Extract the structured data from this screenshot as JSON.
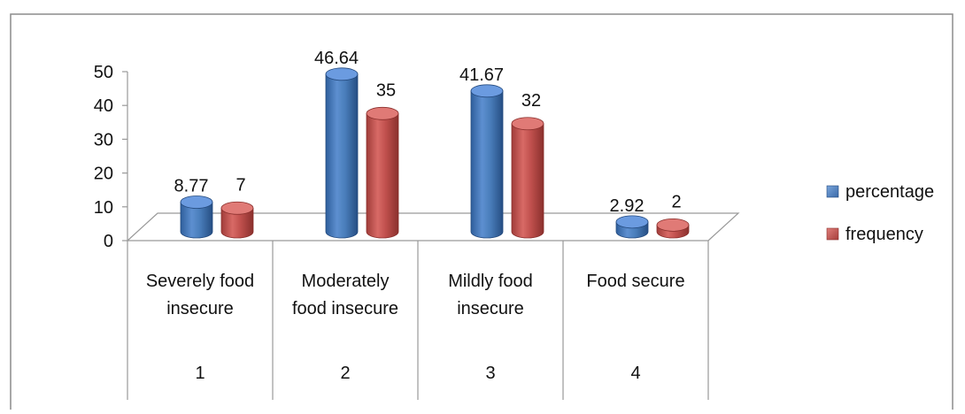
{
  "chart_data": {
    "type": "bar",
    "title": "",
    "xlabel": "",
    "ylabel": "",
    "ylim": [
      0,
      50
    ],
    "y_ticks": [
      "0",
      "10",
      "20",
      "30",
      "40",
      "50"
    ],
    "categories": [
      {
        "name_lines": [
          "Severely food",
          "insecure"
        ],
        "index": "1"
      },
      {
        "name_lines": [
          "Moderately",
          "food insecure"
        ],
        "index": "2"
      },
      {
        "name_lines": [
          "Mildly food",
          "insecure"
        ],
        "index": "3"
      },
      {
        "name_lines": [
          "Food secure"
        ],
        "index": "4"
      }
    ],
    "series": [
      {
        "name": "percentage",
        "color": "#4a7ebb",
        "values": [
          8.77,
          46.64,
          41.67,
          2.92
        ],
        "labels": [
          "8.77",
          "46.64",
          "41.67",
          "2.92"
        ]
      },
      {
        "name": "frequency",
        "color": "#c0504d",
        "values": [
          7,
          35,
          32,
          2
        ],
        "labels": [
          "7",
          "35",
          "32",
          "2"
        ]
      }
    ],
    "legend_position": "right",
    "grid": false,
    "style": "3d-cylinder"
  }
}
